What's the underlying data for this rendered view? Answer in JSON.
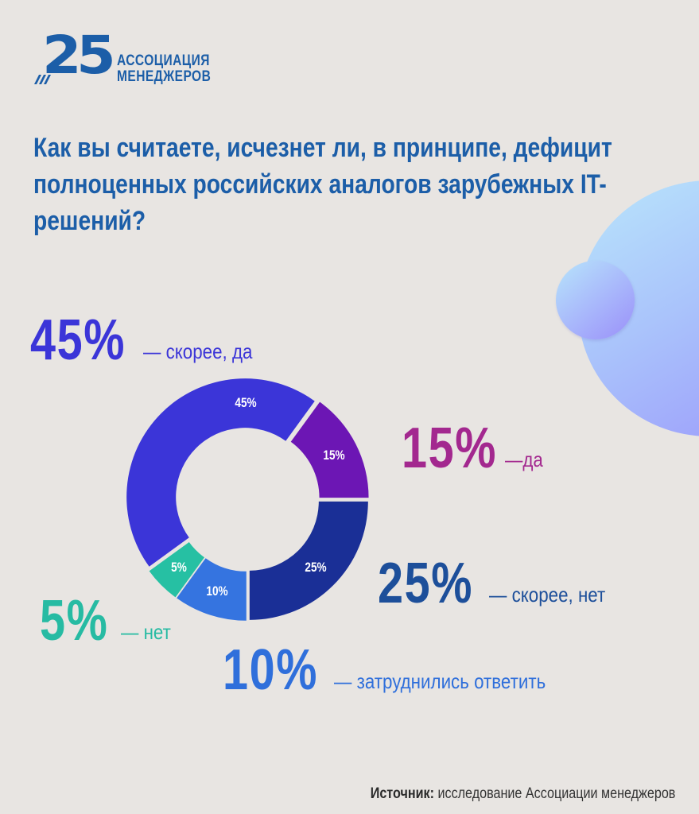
{
  "logo": {
    "number": "25",
    "line1": "АССОЦИАЦИЯ",
    "line2": "МЕНЕДЖЕРОВ",
    "color": "#1c5ea8"
  },
  "question": "Как вы считаете, исчезнет ли, в принципе, дефицит полноценных российских аналогов зарубежных IT-решений?",
  "callouts": {
    "probably_yes": {
      "pct": "45%",
      "desc": "— скорее, да",
      "color": "#3b35d8"
    },
    "yes": {
      "pct": "15%",
      "desc": "—да",
      "color": "#a3288f"
    },
    "probably_no": {
      "pct": "25%",
      "desc": "— скорее, нет",
      "color": "#1d4f9a"
    },
    "no": {
      "pct": "5%",
      "desc": "— нет",
      "color": "#27bba3"
    },
    "hard_to_say": {
      "pct": "10%",
      "desc": "— затруднились ответить",
      "color": "#2f6fdb"
    }
  },
  "chart_data": {
    "type": "pie",
    "variant": "donut",
    "title": "Как вы считаете, исчезнет ли, в принципе, дефицит полноценных российских аналогов зарубежных IT-решений?",
    "categories": [
      "скорее, да",
      "да",
      "скорее, нет",
      "затруднились ответить",
      "нет"
    ],
    "values": [
      45,
      15,
      25,
      10,
      5
    ],
    "unit": "%",
    "colors": [
      "#3b35d8",
      "#6c16b4",
      "#1a2f96",
      "#3574e0",
      "#26c0a3"
    ],
    "labels": [
      "45%",
      "15%",
      "25%",
      "10%",
      "5%"
    ],
    "legend_position": "callouts around chart"
  },
  "source": {
    "label": "Источник:",
    "text": " исследование Ассоциации менеджеров"
  }
}
